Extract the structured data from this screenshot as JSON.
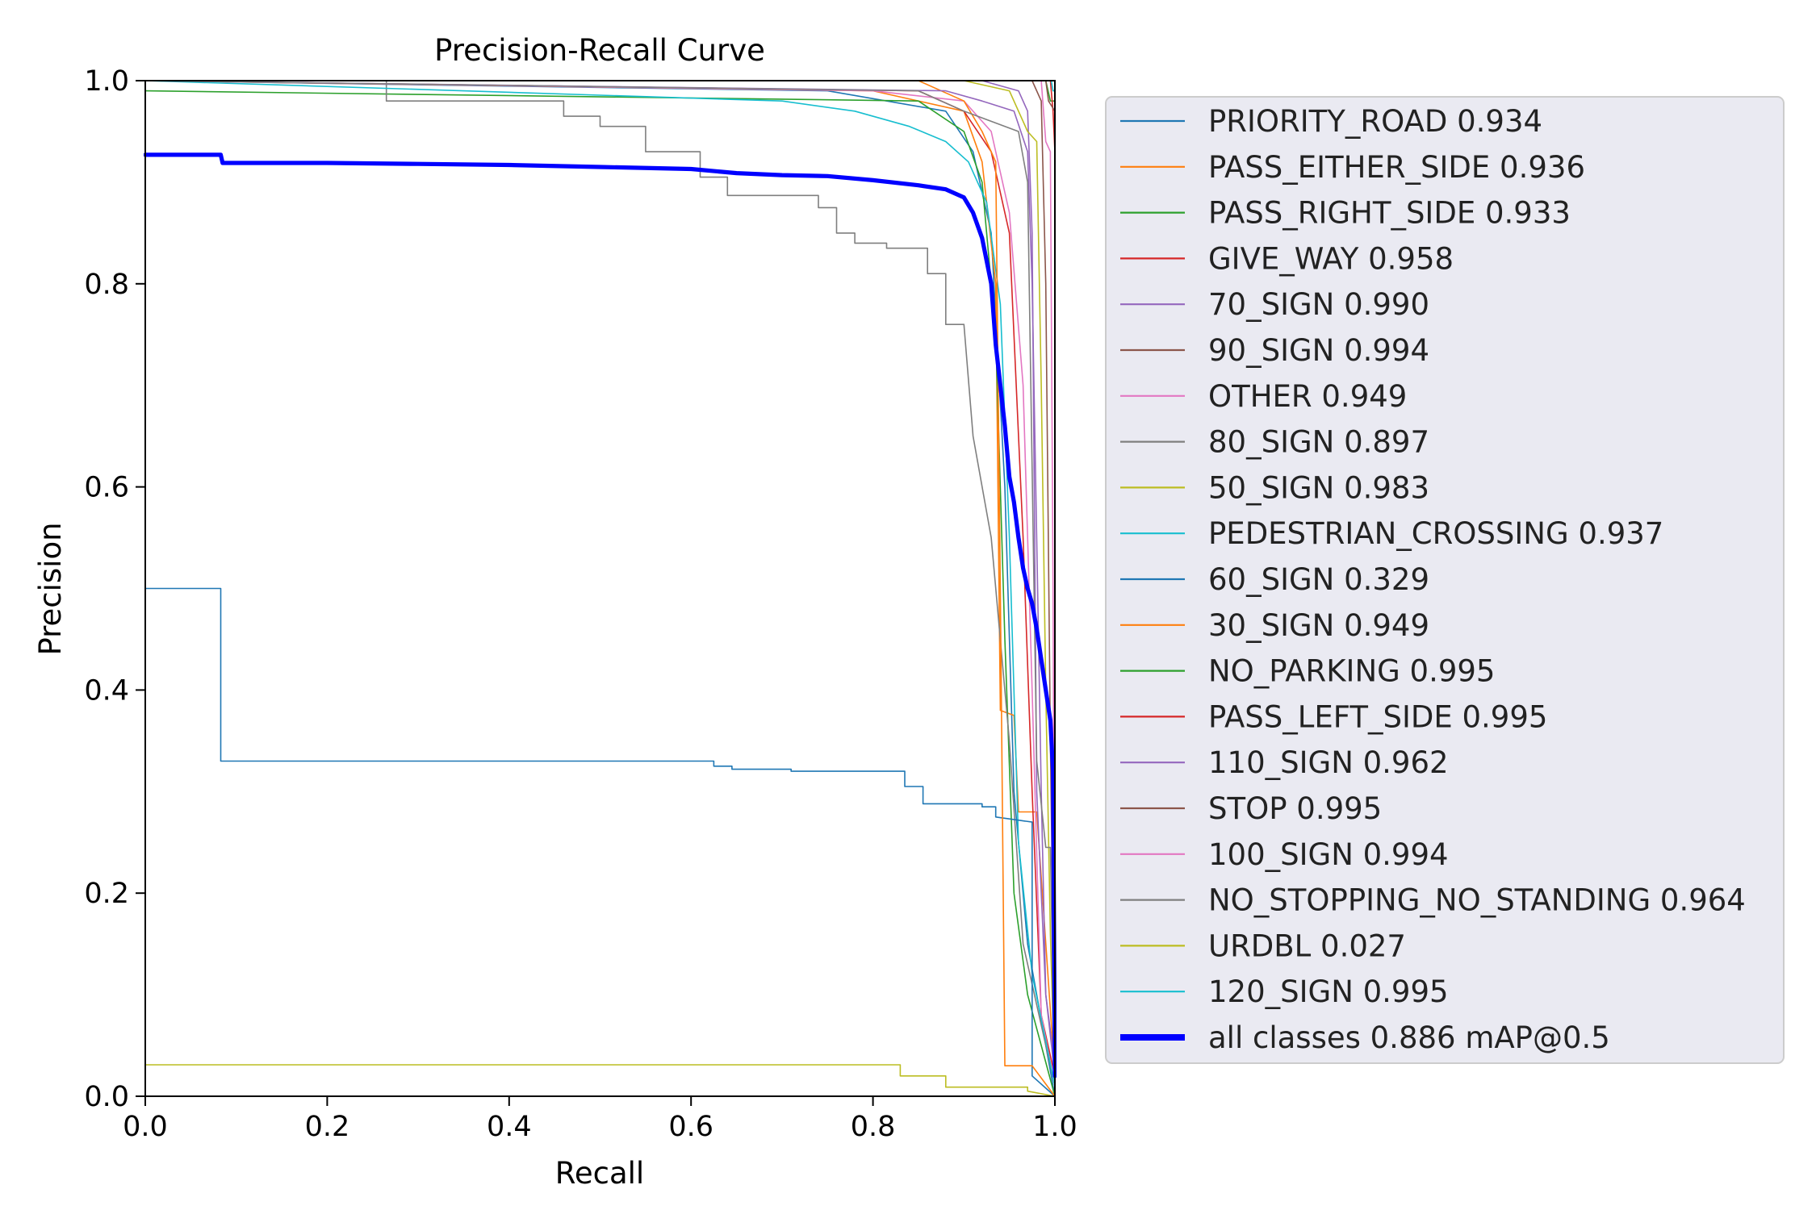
{
  "chart_data": {
    "type": "line",
    "title": "Precision-Recall Curve",
    "xlabel": "Recall",
    "ylabel": "Precision",
    "xlim": [
      0,
      1
    ],
    "ylim": [
      0,
      1
    ],
    "xticks": [
      "0.0",
      "0.2",
      "0.4",
      "0.6",
      "0.8",
      "1.0"
    ],
    "yticks": [
      "0.0",
      "0.2",
      "0.4",
      "0.6",
      "0.8",
      "1.0"
    ],
    "grid": false,
    "legend_position": "outside-right",
    "series": [
      {
        "name": "PRIORITY_ROAD 0.934",
        "color": "#1f77b4",
        "width": 1.6,
        "points": [
          [
            0,
            1
          ],
          [
            0.75,
            0.99
          ],
          [
            0.88,
            0.97
          ],
          [
            0.91,
            0.93
          ],
          [
            0.93,
            0.85
          ],
          [
            0.945,
            0.6
          ],
          [
            0.955,
            0.3
          ],
          [
            0.97,
            0.15
          ],
          [
            1.0,
            0.0
          ]
        ]
      },
      {
        "name": "PASS_EITHER_SIDE 0.936",
        "color": "#ff7f0e",
        "width": 1.6,
        "points": [
          [
            0,
            1
          ],
          [
            0.8,
            0.99
          ],
          [
            0.9,
            0.97
          ],
          [
            0.92,
            0.92
          ],
          [
            0.935,
            0.8
          ],
          [
            0.94,
            0.38
          ],
          [
            0.955,
            0.375
          ],
          [
            0.96,
            0.28
          ],
          [
            0.98,
            0.28
          ],
          [
            1.0,
            0.02
          ]
        ]
      },
      {
        "name": "PASS_RIGHT_SIDE 0.933",
        "color": "#2ca02c",
        "width": 1.6,
        "points": [
          [
            0,
            0.99
          ],
          [
            0.85,
            0.98
          ],
          [
            0.9,
            0.95
          ],
          [
            0.92,
            0.9
          ],
          [
            0.935,
            0.75
          ],
          [
            0.945,
            0.45
          ],
          [
            0.955,
            0.2
          ],
          [
            0.97,
            0.1
          ],
          [
            1.0,
            0.0
          ]
        ]
      },
      {
        "name": "GIVE_WAY 0.958",
        "color": "#d62728",
        "width": 1.6,
        "points": [
          [
            0,
            1
          ],
          [
            0.85,
            0.99
          ],
          [
            0.9,
            0.97
          ],
          [
            0.93,
            0.93
          ],
          [
            0.95,
            0.85
          ],
          [
            0.965,
            0.55
          ],
          [
            0.975,
            0.3
          ],
          [
            0.985,
            0.08
          ],
          [
            1.0,
            0.02
          ]
        ]
      },
      {
        "name": "70_SIGN 0.990",
        "color": "#9467bd",
        "width": 1.6,
        "points": [
          [
            0,
            1
          ],
          [
            0.92,
            1
          ],
          [
            0.96,
            0.99
          ],
          [
            0.97,
            0.97
          ],
          [
            0.975,
            0.85
          ],
          [
            0.98,
            0.3
          ],
          [
            0.99,
            0.1
          ],
          [
            1.0,
            0.03
          ]
        ]
      },
      {
        "name": "90_SIGN 0.994",
        "color": "#8c564b",
        "width": 1.6,
        "points": [
          [
            0,
            1
          ],
          [
            0.95,
            1
          ],
          [
            0.975,
            1
          ],
          [
            0.985,
            0.98
          ],
          [
            0.99,
            0.8
          ],
          [
            0.995,
            0.35
          ],
          [
            1.0,
            0.02
          ]
        ]
      },
      {
        "name": "OTHER 0.949",
        "color": "#e377c2",
        "width": 1.6,
        "points": [
          [
            0,
            1
          ],
          [
            0.8,
            0.99
          ],
          [
            0.9,
            0.98
          ],
          [
            0.93,
            0.95
          ],
          [
            0.95,
            0.87
          ],
          [
            0.965,
            0.7
          ],
          [
            0.975,
            0.4
          ],
          [
            0.985,
            0.08
          ],
          [
            1.0,
            0.01
          ]
        ]
      },
      {
        "name": "80_SIGN 0.897",
        "color": "#7f7f7f",
        "width": 1.6,
        "points": [
          [
            0.265,
            1
          ],
          [
            0.265,
            0.98
          ],
          [
            0.46,
            0.98
          ],
          [
            0.46,
            0.965
          ],
          [
            0.5,
            0.965
          ],
          [
            0.5,
            0.955
          ],
          [
            0.55,
            0.955
          ],
          [
            0.55,
            0.93
          ],
          [
            0.61,
            0.93
          ],
          [
            0.61,
            0.905
          ],
          [
            0.64,
            0.905
          ],
          [
            0.64,
            0.887
          ],
          [
            0.74,
            0.887
          ],
          [
            0.74,
            0.875
          ],
          [
            0.76,
            0.875
          ],
          [
            0.76,
            0.85
          ],
          [
            0.78,
            0.85
          ],
          [
            0.78,
            0.84
          ],
          [
            0.815,
            0.84
          ],
          [
            0.815,
            0.835
          ],
          [
            0.86,
            0.835
          ],
          [
            0.86,
            0.81
          ],
          [
            0.88,
            0.81
          ],
          [
            0.88,
            0.76
          ],
          [
            0.9,
            0.76
          ],
          [
            0.91,
            0.65
          ],
          [
            0.93,
            0.55
          ],
          [
            0.95,
            0.35
          ],
          [
            0.965,
            0.15
          ],
          [
            1.0,
            0.01
          ]
        ]
      },
      {
        "name": "50_SIGN 0.983",
        "color": "#bcbd22",
        "width": 1.6,
        "points": [
          [
            0,
            1
          ],
          [
            0.9,
            1
          ],
          [
            0.95,
            0.99
          ],
          [
            0.97,
            0.95
          ],
          [
            0.98,
            0.94
          ],
          [
            0.985,
            0.7
          ],
          [
            0.99,
            0.4
          ],
          [
            0.995,
            0.16
          ],
          [
            1.0,
            0.01
          ]
        ]
      },
      {
        "name": "PEDESTRIAN_CROSSING 0.937",
        "color": "#17becf",
        "width": 1.6,
        "points": [
          [
            0,
            1
          ],
          [
            0.7,
            0.98
          ],
          [
            0.78,
            0.97
          ],
          [
            0.84,
            0.955
          ],
          [
            0.88,
            0.94
          ],
          [
            0.905,
            0.92
          ],
          [
            0.925,
            0.88
          ],
          [
            0.94,
            0.78
          ],
          [
            0.95,
            0.55
          ],
          [
            0.96,
            0.25
          ],
          [
            0.975,
            0.12
          ],
          [
            1.0,
            0.01
          ]
        ]
      },
      {
        "name": "60_SIGN 0.329",
        "color": "#1f77b4",
        "width": 1.6,
        "points": [
          [
            0,
            0.5
          ],
          [
            0.083,
            0.5
          ],
          [
            0.083,
            0.33
          ],
          [
            0.625,
            0.33
          ],
          [
            0.625,
            0.325
          ],
          [
            0.645,
            0.325
          ],
          [
            0.645,
            0.322
          ],
          [
            0.71,
            0.322
          ],
          [
            0.71,
            0.32
          ],
          [
            0.835,
            0.32
          ],
          [
            0.835,
            0.305
          ],
          [
            0.855,
            0.305
          ],
          [
            0.855,
            0.288
          ],
          [
            0.92,
            0.288
          ],
          [
            0.92,
            0.285
          ],
          [
            0.935,
            0.285
          ],
          [
            0.935,
            0.275
          ],
          [
            0.975,
            0.27
          ],
          [
            0.975,
            0.02
          ],
          [
            1.0,
            0.0
          ]
        ]
      },
      {
        "name": "30_SIGN 0.949",
        "color": "#ff7f0e",
        "width": 1.6,
        "points": [
          [
            0,
            1
          ],
          [
            0.85,
            1
          ],
          [
            0.9,
            0.98
          ],
          [
            0.92,
            0.95
          ],
          [
            0.935,
            0.92
          ],
          [
            0.94,
            0.5
          ],
          [
            0.945,
            0.03
          ],
          [
            0.975,
            0.03
          ],
          [
            1.0,
            0.0
          ]
        ]
      },
      {
        "name": "NO_PARKING 0.995",
        "color": "#2ca02c",
        "width": 1.6,
        "points": [
          [
            0,
            1
          ],
          [
            0.96,
            1
          ],
          [
            0.99,
            1
          ],
          [
            0.995,
            0.98
          ],
          [
            1.0,
            0.98
          ],
          [
            1.0,
            0.02
          ]
        ]
      },
      {
        "name": "PASS_LEFT_SIDE 0.995",
        "color": "#d62728",
        "width": 1.6,
        "points": [
          [
            0,
            1
          ],
          [
            0.97,
            1
          ],
          [
            0.995,
            1
          ],
          [
            0.998,
            0.97
          ],
          [
            1.0,
            0.93
          ],
          [
            1.0,
            0.01
          ]
        ]
      },
      {
        "name": "110_SIGN 0.962",
        "color": "#9467bd",
        "width": 1.6,
        "points": [
          [
            0,
            1
          ],
          [
            0.88,
            0.99
          ],
          [
            0.92,
            0.98
          ],
          [
            0.955,
            0.97
          ],
          [
            0.97,
            0.93
          ],
          [
            0.975,
            0.8
          ],
          [
            0.985,
            0.3
          ],
          [
            0.99,
            0.1
          ],
          [
            1.0,
            0.02
          ]
        ]
      },
      {
        "name": "STOP 0.995",
        "color": "#8c564b",
        "width": 1.6,
        "points": [
          [
            0,
            1
          ],
          [
            0.97,
            1
          ],
          [
            0.99,
            1
          ],
          [
            0.993,
            0.98
          ],
          [
            1.0,
            0.97
          ],
          [
            1.0,
            0.01
          ]
        ]
      },
      {
        "name": "100_SIGN 0.994",
        "color": "#e377c2",
        "width": 1.6,
        "points": [
          [
            0,
            1
          ],
          [
            0.95,
            1
          ],
          [
            0.985,
            1
          ],
          [
            0.99,
            0.94
          ],
          [
            0.995,
            0.93
          ],
          [
            0.998,
            0.5
          ],
          [
            1.0,
            0.02
          ]
        ]
      },
      {
        "name": "NO_STOPPING_NO_STANDING 0.964",
        "color": "#7f7f7f",
        "width": 1.6,
        "points": [
          [
            0,
            1
          ],
          [
            0.85,
            0.99
          ],
          [
            0.9,
            0.97
          ],
          [
            0.93,
            0.96
          ],
          [
            0.96,
            0.95
          ],
          [
            0.97,
            0.9
          ],
          [
            0.98,
            0.33
          ],
          [
            0.99,
            0.245
          ],
          [
            0.995,
            0.245
          ],
          [
            1.0,
            0.01
          ]
        ]
      },
      {
        "name": "URDBL 0.027",
        "color": "#bcbd22",
        "width": 1.6,
        "points": [
          [
            0,
            0.031
          ],
          [
            0.83,
            0.031
          ],
          [
            0.83,
            0.02
          ],
          [
            0.88,
            0.02
          ],
          [
            0.88,
            0.009
          ],
          [
            0.97,
            0.009
          ],
          [
            0.97,
            0.005
          ],
          [
            1.0,
            0.0
          ]
        ]
      },
      {
        "name": "120_SIGN 0.995",
        "color": "#17becf",
        "width": 1.6,
        "points": [
          [
            0,
            1
          ],
          [
            0.98,
            1
          ],
          [
            0.996,
            1
          ],
          [
            0.998,
            0.99
          ],
          [
            1.0,
            0.99
          ],
          [
            1.0,
            0.01
          ]
        ]
      },
      {
        "name": "all classes 0.886 mAP@0.5",
        "color": "#0000ff",
        "width": 5.2,
        "points": [
          [
            0,
            0.927
          ],
          [
            0.083,
            0.927
          ],
          [
            0.085,
            0.919
          ],
          [
            0.2,
            0.919
          ],
          [
            0.3,
            0.918
          ],
          [
            0.4,
            0.917
          ],
          [
            0.5,
            0.915
          ],
          [
            0.6,
            0.913
          ],
          [
            0.65,
            0.909
          ],
          [
            0.7,
            0.907
          ],
          [
            0.75,
            0.906
          ],
          [
            0.8,
            0.902
          ],
          [
            0.85,
            0.897
          ],
          [
            0.88,
            0.893
          ],
          [
            0.9,
            0.885
          ],
          [
            0.91,
            0.87
          ],
          [
            0.92,
            0.845
          ],
          [
            0.93,
            0.8
          ],
          [
            0.935,
            0.74
          ],
          [
            0.94,
            0.7
          ],
          [
            0.945,
            0.66
          ],
          [
            0.95,
            0.61
          ],
          [
            0.955,
            0.585
          ],
          [
            0.96,
            0.55
          ],
          [
            0.965,
            0.52
          ],
          [
            0.97,
            0.5
          ],
          [
            0.975,
            0.485
          ],
          [
            0.98,
            0.46
          ],
          [
            0.985,
            0.43
          ],
          [
            0.99,
            0.4
          ],
          [
            0.995,
            0.37
          ],
          [
            0.998,
            0.32
          ],
          [
            1.0,
            0.02
          ]
        ]
      }
    ]
  }
}
